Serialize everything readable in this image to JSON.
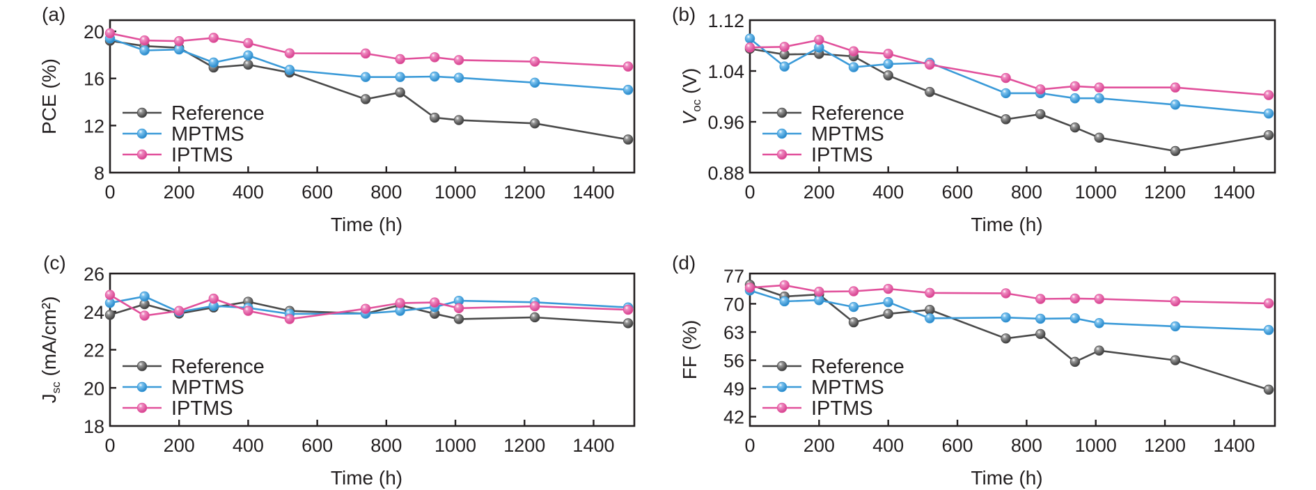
{
  "figure": {
    "legend": [
      {
        "name": "Reference",
        "color": "#4a4a4a"
      },
      {
        "name": "MPTMS",
        "color": "#3a9ad8"
      },
      {
        "name": "IPTMS",
        "color": "#e1509b"
      }
    ]
  },
  "chart_data": [
    {
      "id": "a",
      "panel_label": "(a)",
      "type": "line",
      "title": "",
      "xlabel": "Time (h)",
      "ylabel": "PCE (%)",
      "ylabel_main": "PCE (%)",
      "ylabel_sub": "",
      "ylabel_rest": "",
      "xlim": [
        0,
        1518
      ],
      "ylim": [
        8,
        20.95
      ],
      "xticks": [
        0,
        200,
        400,
        600,
        800,
        1000,
        1200,
        1400
      ],
      "yticks": [
        8,
        12,
        16,
        20
      ],
      "ytick_labels": [
        "8",
        "12",
        "16",
        "20"
      ],
      "grid": false,
      "legend_position": "bottom-left",
      "x": [
        0,
        100,
        200,
        300,
        400,
        520,
        740,
        840,
        940,
        1010,
        1230,
        1500
      ],
      "series": [
        {
          "name": "Reference",
          "color": "#4a4a4a",
          "values": [
            19.2,
            18.75,
            18.6,
            16.93,
            17.17,
            16.5,
            14.24,
            14.81,
            12.67,
            12.46,
            12.18,
            10.81
          ]
        },
        {
          "name": "MPTMS",
          "color": "#3a9ad8",
          "values": [
            19.4,
            18.38,
            18.46,
            17.35,
            17.96,
            16.73,
            16.12,
            16.12,
            16.16,
            16.06,
            15.64,
            15.03
          ]
        },
        {
          "name": "IPTMS",
          "color": "#e1509b",
          "values": [
            19.84,
            19.23,
            19.17,
            19.45,
            19.0,
            18.14,
            18.12,
            17.64,
            17.8,
            17.56,
            17.43,
            17.01
          ]
        }
      ]
    },
    {
      "id": "b",
      "panel_label": "(b)",
      "type": "line",
      "title": "",
      "xlabel": "Time (h)",
      "ylabel": "Voc (V)",
      "ylabel_main": "V",
      "ylabel_sub": "oc",
      "ylabel_rest": " (V)",
      "xlim": [
        0,
        1518
      ],
      "ylim": [
        0.88,
        1.12
      ],
      "xticks": [
        0,
        200,
        400,
        600,
        800,
        1000,
        1200,
        1400
      ],
      "yticks": [
        0.88,
        0.96,
        1.04,
        1.12
      ],
      "ytick_labels": [
        "0.88",
        "0.96",
        "1.04",
        "1.12"
      ],
      "grid": false,
      "legend_position": "bottom-left",
      "x": [
        0,
        100,
        200,
        300,
        400,
        520,
        740,
        840,
        940,
        1010,
        1230,
        1500
      ],
      "series": [
        {
          "name": "Reference",
          "color": "#4a4a4a",
          "values": [
            1.075,
            1.066,
            1.067,
            1.063,
            1.033,
            1.007,
            0.964,
            0.972,
            0.951,
            0.935,
            0.914,
            0.939
          ]
        },
        {
          "name": "MPTMS",
          "color": "#3a9ad8",
          "values": [
            1.091,
            1.047,
            1.077,
            1.046,
            1.051,
            1.053,
            1.005,
            1.005,
            0.997,
            0.997,
            0.987,
            0.973
          ]
        },
        {
          "name": "IPTMS",
          "color": "#e1509b",
          "values": [
            1.077,
            1.078,
            1.089,
            1.071,
            1.067,
            1.05,
            1.029,
            1.011,
            1.016,
            1.014,
            1.014,
            1.002
          ]
        }
      ]
    },
    {
      "id": "c",
      "panel_label": "(c)",
      "type": "line",
      "title": "",
      "xlabel": "Time (h)",
      "ylabel": "Jsc (mA/cm2)",
      "ylabel_main": "J",
      "ylabel_sub": "sc",
      "ylabel_rest": " (mA/cm²)",
      "xlim": [
        0,
        1518
      ],
      "ylim": [
        18,
        26
      ],
      "xticks": [
        0,
        200,
        400,
        600,
        800,
        1000,
        1200,
        1400
      ],
      "yticks": [
        18,
        20,
        22,
        24,
        26
      ],
      "ytick_labels": [
        "18",
        "20",
        "22",
        "24",
        "26"
      ],
      "grid": false,
      "legend_position": "bottom-left",
      "x": [
        0,
        100,
        200,
        300,
        400,
        520,
        740,
        840,
        940,
        1010,
        1230,
        1500
      ],
      "series": [
        {
          "name": "Reference",
          "color": "#4a4a4a",
          "values": [
            23.83,
            24.39,
            23.9,
            24.22,
            24.52,
            24.04,
            23.9,
            24.34,
            23.89,
            23.61,
            23.7,
            23.39
          ]
        },
        {
          "name": "MPTMS",
          "color": "#3a9ad8",
          "values": [
            24.46,
            24.8,
            23.98,
            24.3,
            24.2,
            23.88,
            23.9,
            24.04,
            24.24,
            24.57,
            24.49,
            24.22
          ]
        },
        {
          "name": "IPTMS",
          "color": "#e1509b",
          "values": [
            24.88,
            23.79,
            24.04,
            24.68,
            24.04,
            23.61,
            24.15,
            24.45,
            24.48,
            24.18,
            24.28,
            24.1
          ]
        }
      ]
    },
    {
      "id": "d",
      "panel_label": "(d)",
      "type": "line",
      "title": "",
      "xlabel": "Time (h)",
      "ylabel": "FF (%)",
      "ylabel_main": "FF (%)",
      "ylabel_sub": "",
      "ylabel_rest": "",
      "xlim": [
        0,
        1518
      ],
      "ylim": [
        39.7,
        77.5
      ],
      "xticks": [
        0,
        200,
        400,
        600,
        800,
        1000,
        1200,
        1400
      ],
      "yticks": [
        42,
        49,
        56,
        63,
        70,
        77
      ],
      "ytick_labels": [
        "42",
        "49",
        "56",
        "63",
        "70",
        "77"
      ],
      "grid": false,
      "legend_position": "bottom-left",
      "x": [
        0,
        100,
        200,
        300,
        400,
        520,
        740,
        840,
        940,
        1010,
        1230,
        1500
      ],
      "series": [
        {
          "name": "Reference",
          "color": "#4a4a4a",
          "values": [
            74.7,
            71.8,
            72.3,
            65.4,
            67.5,
            68.5,
            61.4,
            62.5,
            55.6,
            58.4,
            56.0,
            48.7
          ]
        },
        {
          "name": "MPTMS",
          "color": "#3a9ad8",
          "values": [
            73.3,
            70.6,
            70.9,
            69.2,
            70.4,
            66.4,
            66.6,
            66.3,
            66.4,
            65.2,
            64.4,
            63.5
          ]
        },
        {
          "name": "IPTMS",
          "color": "#e1509b",
          "values": [
            74.0,
            74.6,
            73.0,
            73.1,
            73.7,
            72.7,
            72.6,
            71.2,
            71.3,
            71.2,
            70.6,
            70.1
          ]
        }
      ]
    }
  ]
}
